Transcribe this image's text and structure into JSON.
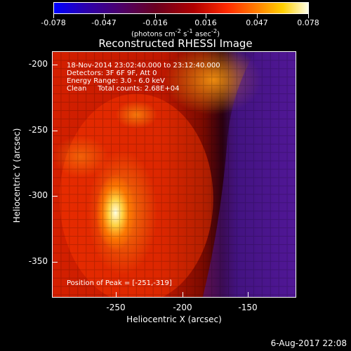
{
  "colorbar": {
    "ticks": [
      "-0.078",
      "-0.047",
      "-0.016",
      "0.016",
      "0.047",
      "0.078"
    ],
    "units_text": "(photons cm",
    "units_sup1": "-2",
    "units_mid1": " s",
    "units_sup2": "-1",
    "units_mid2": " asec",
    "units_sup3": "-2",
    "units_end": ")"
  },
  "title": "Reconstructed RHESSI Image",
  "annotations": {
    "time": "18-Nov-2014 23:02:40.000 to 23:12:40.000",
    "detectors": "Detectors: 3F 6F 9F, Att 0",
    "energy": "Energy Range: 3.0 - 6.0 keV",
    "clean": "Clean     Total counts: 2.68E+04",
    "peak": "Position of Peak = [-251,-319]"
  },
  "axes": {
    "ylabel": "Heliocentric Y (arcsec)",
    "xlabel": "Heliocentric X (arcsec)",
    "yticks": [
      "-200",
      "-250",
      "-300",
      "-350"
    ],
    "xticks": [
      "-250",
      "-200",
      "-150"
    ]
  },
  "footer": {
    "date": "6-Aug-2017 22:08"
  }
}
